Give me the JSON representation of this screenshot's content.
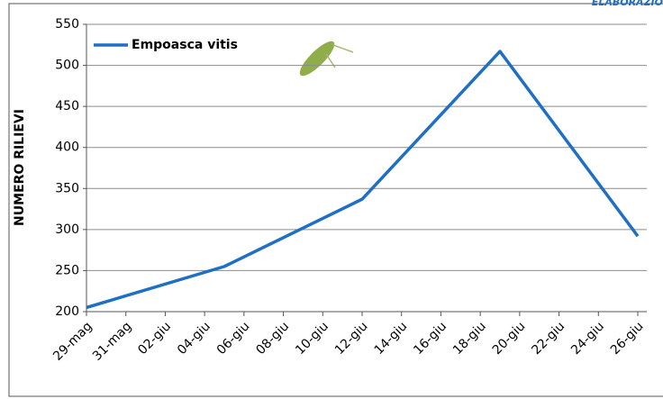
{
  "chart_data": {
    "type": "line",
    "header_note": "ELABORAZIO",
    "y_label": "NUMERO RILIEVI",
    "xticks": [
      "29-mag",
      "31-mag",
      "02-giu",
      "04-giu",
      "06-giu",
      "08-giu",
      "10-giu",
      "12-giu",
      "14-giu",
      "16-giu",
      "18-giu",
      "20-giu",
      "22-giu",
      "24-giu",
      "26-giu"
    ],
    "x": [
      "29-mag",
      "05-giu",
      "12-giu",
      "19-giu",
      "26-giu"
    ],
    "series": [
      {
        "name": "Empoasca vitis",
        "color": "#1f6fc5",
        "values": [
          205,
          255,
          337,
          517,
          292
        ]
      }
    ],
    "ylim": [
      200,
      550
    ],
    "yticks": [
      200,
      250,
      300,
      350,
      400,
      450,
      500,
      550
    ],
    "grid": true,
    "legend": "top-left"
  }
}
